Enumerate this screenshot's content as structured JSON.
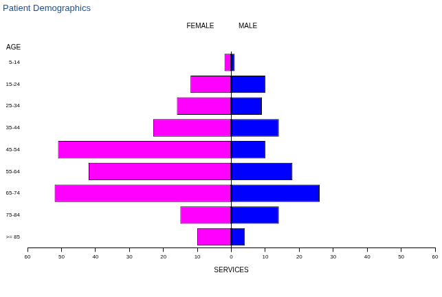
{
  "chart_data": {
    "type": "bar",
    "title": "Patient Demographics",
    "orientation": "horizontal",
    "categories": [
      "5-14",
      "15-24",
      "25-34",
      "35-44",
      "45-54",
      "55-64",
      "65-74",
      "75-84",
      ">= 85"
    ],
    "series": [
      {
        "name": "FEMALE",
        "color": "#ff00ff",
        "values": [
          2,
          12,
          16,
          23,
          51,
          42,
          52,
          15,
          10
        ]
      },
      {
        "name": "MALE",
        "color": "#0000ff",
        "values": [
          1,
          10,
          9,
          14,
          10,
          18,
          26,
          14,
          4
        ]
      }
    ],
    "x_label": "SERVICES",
    "y_label": "AGE",
    "xlim": [
      0,
      60
    ],
    "xticks": [
      0,
      10,
      20,
      30,
      40,
      50,
      60
    ],
    "grid": false
  }
}
